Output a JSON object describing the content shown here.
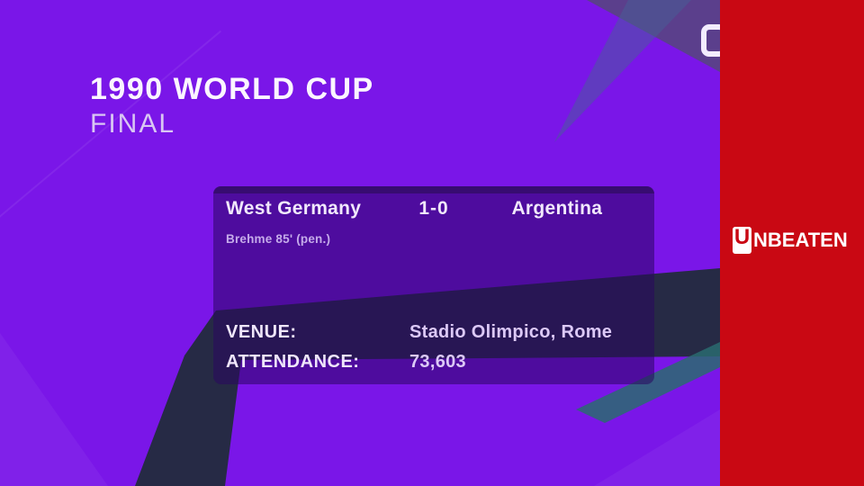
{
  "header": {
    "title": "1990 WORLD CUP",
    "subtitle": "FINAL"
  },
  "match_card": {
    "home_team": "West Germany",
    "score": "1-0",
    "away_team": "Argentina",
    "scorer_note": "Brehme 85' (pen.)",
    "details": [
      {
        "label": "VENUE:",
        "value": "Stadio Olimpico, Rome"
      },
      {
        "label": "ATTENDANCE:",
        "value": "73,603"
      }
    ]
  },
  "branding": {
    "logo_initial": "U",
    "logo_text": "NBEATEN"
  },
  "colors": {
    "background_purple": "#7a16e8",
    "card_overlay": "rgba(42,5,96,0.55)",
    "sidebar_red": "#c90813",
    "dark_shape": "#262a45",
    "teal_accent": "#2a6b70",
    "title_white": "#fbf5ff",
    "subtitle_lavender": "#d9c6f3"
  }
}
